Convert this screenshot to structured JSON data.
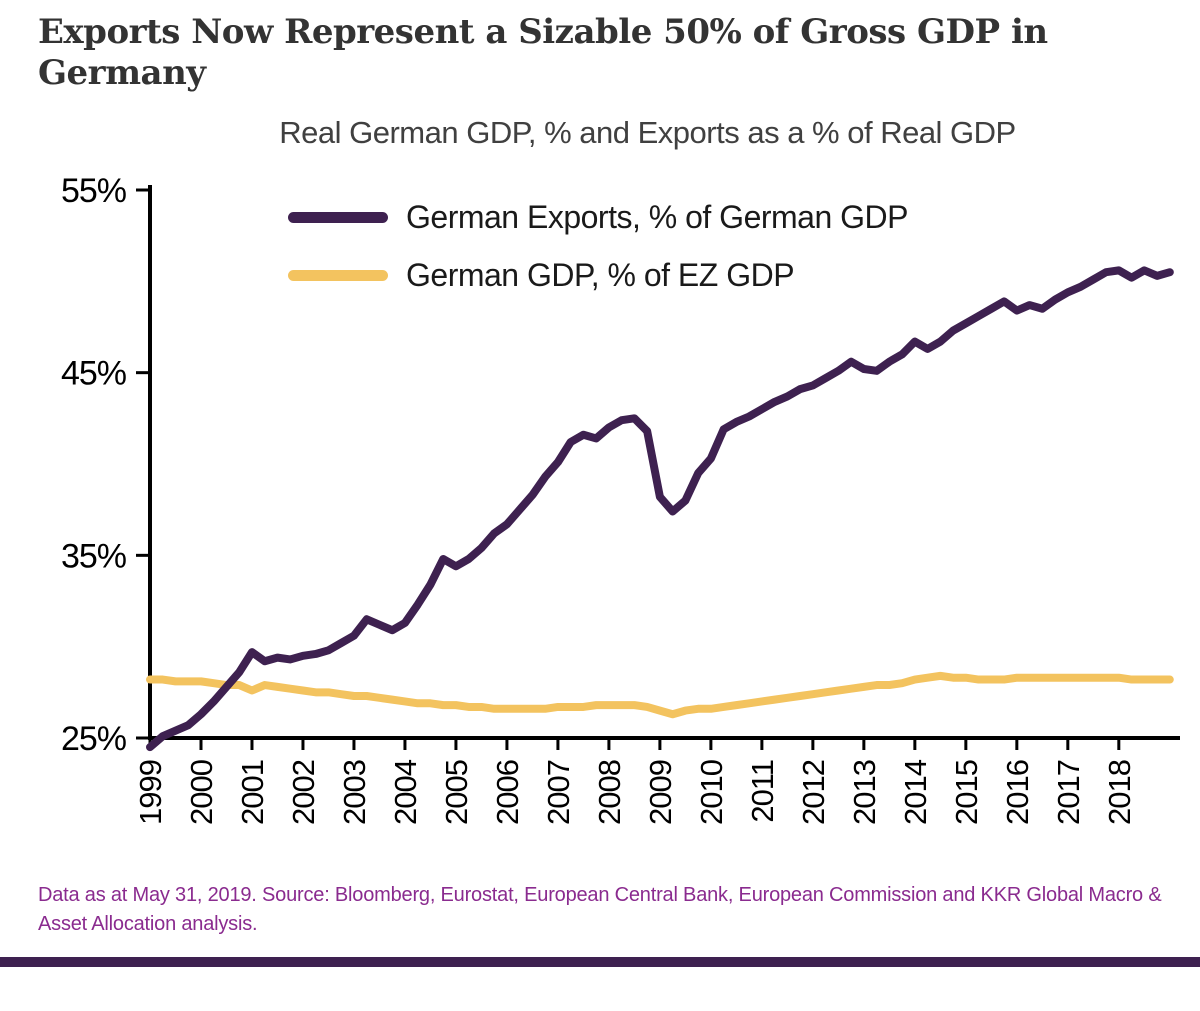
{
  "header": {
    "title": "Exports Now Represent a Sizable 50% of Gross GDP in\nGermany",
    "subtitle": "Real German GDP, % and Exports as a % of Real GDP"
  },
  "footer": {
    "source": "Data as at May 31, 2019. Source: Bloomberg, Eurostat, European Central Bank, European Commission and KKR Global Macro & Asset Allocation analysis."
  },
  "colors": {
    "exports_line": "#3E2150",
    "gdp_line": "#F3C35F",
    "axis": "#000000",
    "title_text": "#333333",
    "footer_text": "#8A2B8F",
    "bottom_bar": "#3E2150"
  },
  "chart_data": {
    "type": "line",
    "title": "Real German GDP, % and Exports as a % of Real GDP",
    "xlabel": "",
    "ylabel": "",
    "grid": false,
    "legend_position": "top-left-inside",
    "ylim": [
      25,
      55
    ],
    "xlim": [
      1999,
      2019.2
    ],
    "y_ticks": [
      55,
      45,
      35,
      25
    ],
    "y_tick_suffix": "%",
    "x_tick_years": [
      1999,
      2000,
      2001,
      2002,
      2003,
      2004,
      2005,
      2006,
      2007,
      2008,
      2009,
      2010,
      2011,
      2012,
      2013,
      2014,
      2015,
      2016,
      2017,
      2018
    ],
    "x": [
      1999,
      1999.25,
      1999.5,
      1999.75,
      2000,
      2000.25,
      2000.5,
      2000.75,
      2001,
      2001.25,
      2001.5,
      2001.75,
      2002,
      2002.25,
      2002.5,
      2002.75,
      2003,
      2003.25,
      2003.5,
      2003.75,
      2004,
      2004.25,
      2004.5,
      2004.75,
      2005,
      2005.25,
      2005.5,
      2005.75,
      2006,
      2006.25,
      2006.5,
      2006.75,
      2007,
      2007.25,
      2007.5,
      2007.75,
      2008,
      2008.25,
      2008.5,
      2008.75,
      2009,
      2009.25,
      2009.5,
      2009.75,
      2010,
      2010.25,
      2010.5,
      2010.75,
      2011,
      2011.25,
      2011.5,
      2011.75,
      2012,
      2012.25,
      2012.5,
      2012.75,
      2013,
      2013.25,
      2013.5,
      2013.75,
      2014,
      2014.25,
      2014.5,
      2014.75,
      2015,
      2015.25,
      2015.5,
      2015.75,
      2016,
      2016.25,
      2016.5,
      2016.75,
      2017,
      2017.25,
      2017.5,
      2017.75,
      2018,
      2018.25,
      2018.5,
      2018.75,
      2019
    ],
    "series": [
      {
        "name": "German Exports, % of German GDP",
        "color": "#3E2150",
        "values": [
          24.5,
          25.1,
          25.4,
          25.7,
          26.3,
          27.0,
          27.8,
          28.6,
          29.7,
          29.2,
          29.4,
          29.3,
          29.5,
          29.6,
          29.8,
          30.2,
          30.6,
          31.5,
          31.2,
          30.9,
          31.3,
          32.3,
          33.4,
          34.8,
          34.4,
          34.8,
          35.4,
          36.2,
          36.7,
          37.5,
          38.3,
          39.3,
          40.1,
          41.2,
          41.6,
          41.4,
          42.0,
          42.4,
          42.5,
          41.8,
          38.2,
          37.4,
          38.0,
          39.5,
          40.3,
          41.9,
          42.3,
          42.6,
          43.0,
          43.4,
          43.7,
          44.1,
          44.3,
          44.7,
          45.1,
          45.6,
          45.2,
          45.1,
          45.6,
          46.0,
          46.7,
          46.3,
          46.7,
          47.3,
          47.7,
          48.1,
          48.5,
          48.9,
          48.4,
          48.7,
          48.5,
          49.0,
          49.4,
          49.7,
          50.1,
          50.5,
          50.6,
          50.2,
          50.6,
          50.3,
          50.5
        ]
      },
      {
        "name": "German GDP, % of EZ GDP",
        "color": "#F3C35F",
        "values": [
          28.2,
          28.2,
          28.1,
          28.1,
          28.1,
          28.0,
          27.9,
          27.9,
          27.6,
          27.9,
          27.8,
          27.7,
          27.6,
          27.5,
          27.5,
          27.4,
          27.3,
          27.3,
          27.2,
          27.1,
          27.0,
          26.9,
          26.9,
          26.8,
          26.8,
          26.7,
          26.7,
          26.6,
          26.6,
          26.6,
          26.6,
          26.6,
          26.7,
          26.7,
          26.7,
          26.8,
          26.8,
          26.8,
          26.8,
          26.7,
          26.5,
          26.3,
          26.5,
          26.6,
          26.6,
          26.7,
          26.8,
          26.9,
          27.0,
          27.1,
          27.2,
          27.3,
          27.4,
          27.5,
          27.6,
          27.7,
          27.8,
          27.9,
          27.9,
          28.0,
          28.2,
          28.3,
          28.4,
          28.3,
          28.3,
          28.2,
          28.2,
          28.2,
          28.3,
          28.3,
          28.3,
          28.3,
          28.3,
          28.3,
          28.3,
          28.3,
          28.3,
          28.2,
          28.2,
          28.2,
          28.2
        ]
      }
    ]
  }
}
